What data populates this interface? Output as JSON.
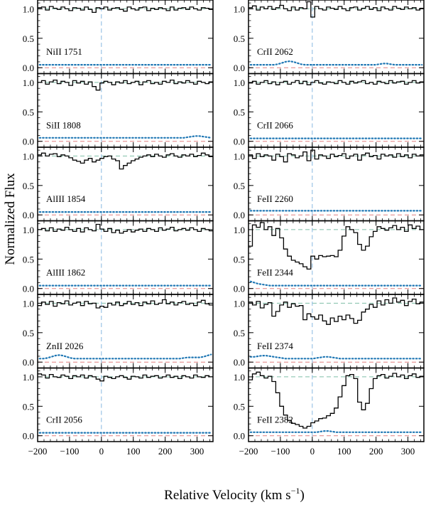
{
  "figure": {
    "ylabel": "Normalized Flux",
    "xlabel_main": "Relative Velocity  (km s",
    "xlabel_exp": "−1",
    "xlabel_close": ")"
  },
  "chart_data": {
    "type": "line",
    "shared": {
      "xlim": [
        -200,
        350
      ],
      "ylim": [
        -0.1,
        1.15
      ],
      "xticks": [
        -200,
        -100,
        0,
        100,
        200,
        300
      ],
      "xtick_labels": [
        "−200",
        "−100",
        "0",
        "100",
        "200",
        "300"
      ],
      "yticks": [
        0.0,
        0.5,
        1.0
      ],
      "ytick_labels": [
        "0.0",
        "0.5",
        "1.0"
      ],
      "continuum_level": 1.0,
      "zero_level": 0.0,
      "velocity_zero": 0,
      "grid": false,
      "colors": {
        "flux": "#000000",
        "error": "#1f77b4",
        "continuum": "#7fbfa8",
        "zero_line": "#e08080",
        "velocity_marker": "#87b7e0"
      }
    },
    "panels": [
      {
        "label": "NiII 1751",
        "flux": [
          1.02,
          1.03,
          0.98,
          1.04,
          1.01,
          0.99,
          1.03,
          1.0,
          0.97,
          1.02,
          1.01,
          0.98,
          1.03,
          0.99,
          0.94,
          1.02,
          1.0,
          1.03,
          0.98,
          1.01,
          1.02,
          0.99,
          0.96,
          1.03,
          1.0,
          0.98,
          1.02,
          1.03,
          0.97,
          1.01,
          0.99,
          1.02,
          1.0,
          0.97,
          1.03,
          0.98,
          1.01,
          1.02,
          0.99,
          1.03,
          1.0,
          0.98,
          1.02,
          1.01,
          0.99
        ],
        "error": [
          0.05,
          0.05,
          0.05,
          0.05,
          0.05,
          0.05,
          0.05,
          0.05,
          0.05,
          0.05,
          0.05,
          0.05,
          0.05,
          0.05,
          0.05,
          0.05,
          0.05,
          0.05,
          0.05,
          0.05,
          0.05,
          0.05,
          0.05,
          0.05,
          0.05,
          0.05,
          0.05,
          0.05,
          0.05,
          0.05,
          0.05,
          0.05,
          0.05,
          0.05,
          0.05,
          0.05,
          0.05,
          0.05,
          0.05,
          0.05,
          0.05,
          0.05,
          0.05,
          0.05,
          0.05
        ]
      },
      {
        "label": "CrII 2062",
        "flux": [
          1.02,
          1.05,
          0.98,
          1.03,
          1.0,
          1.04,
          0.99,
          1.02,
          1.06,
          1.0,
          0.97,
          1.03,
          0.98,
          1.02,
          1.0,
          1.12,
          0.86,
          1.04,
          1.0,
          0.98,
          1.03,
          1.01,
          0.99,
          1.04,
          1.0,
          0.97,
          1.02,
          1.03,
          0.98,
          1.01,
          1.04,
          0.99,
          1.02,
          0.97,
          1.03,
          1.0,
          0.98,
          1.04,
          1.01,
          0.99,
          1.03,
          1.0,
          1.02,
          0.98,
          1.01
        ],
        "error": [
          0.05,
          0.05,
          0.05,
          0.05,
          0.05,
          0.05,
          0.05,
          0.06,
          0.08,
          0.1,
          0.11,
          0.1,
          0.08,
          0.06,
          0.05,
          0.05,
          0.05,
          0.05,
          0.05,
          0.05,
          0.05,
          0.05,
          0.05,
          0.05,
          0.05,
          0.05,
          0.05,
          0.05,
          0.05,
          0.05,
          0.05,
          0.05,
          0.05,
          0.06,
          0.07,
          0.07,
          0.06,
          0.05,
          0.05,
          0.05,
          0.05,
          0.05,
          0.05,
          0.05,
          0.05
        ]
      },
      {
        "label": "SiII 1808",
        "flux": [
          1.0,
          1.03,
          0.97,
          1.01,
          1.04,
          0.98,
          1.02,
          1.0,
          0.95,
          1.03,
          0.99,
          1.02,
          0.97,
          1.01,
          0.93,
          0.87,
          0.99,
          1.02,
          1.0,
          0.96,
          1.01,
          0.99,
          1.03,
          0.98,
          1.0,
          1.02,
          0.96,
          1.01,
          1.03,
          0.98,
          1.0,
          0.97,
          1.02,
          1.0,
          1.04,
          0.98,
          1.01,
          0.99,
          1.03,
          1.0,
          0.97,
          1.02,
          1.0,
          0.98,
          1.01
        ],
        "error": [
          0.06,
          0.06,
          0.06,
          0.06,
          0.06,
          0.06,
          0.06,
          0.06,
          0.06,
          0.06,
          0.06,
          0.06,
          0.06,
          0.06,
          0.06,
          0.06,
          0.06,
          0.06,
          0.06,
          0.06,
          0.06,
          0.06,
          0.06,
          0.06,
          0.06,
          0.06,
          0.06,
          0.06,
          0.06,
          0.06,
          0.06,
          0.06,
          0.06,
          0.06,
          0.06,
          0.06,
          0.06,
          0.06,
          0.07,
          0.08,
          0.09,
          0.09,
          0.08,
          0.07,
          0.06
        ]
      },
      {
        "label": "CrII 2066",
        "flux": [
          0.99,
          1.02,
          0.97,
          1.0,
          1.03,
          0.98,
          1.01,
          0.96,
          1.0,
          1.02,
          0.97,
          1.0,
          1.03,
          0.98,
          1.02,
          0.96,
          1.0,
          1.03,
          0.99,
          0.97,
          1.01,
          1.0,
          0.98,
          1.03,
          1.0,
          0.97,
          1.02,
          0.99,
          1.01,
          1.03,
          0.98,
          1.0,
          0.97,
          1.02,
          1.0,
          0.98,
          1.03,
          0.99,
          1.01,
          1.02,
          0.97,
          1.0,
          1.03,
          0.99,
          1.01
        ],
        "error": [
          0.05,
          0.05,
          0.05,
          0.05,
          0.05,
          0.05,
          0.05,
          0.05,
          0.05,
          0.05,
          0.05,
          0.05,
          0.05,
          0.05,
          0.05,
          0.05,
          0.05,
          0.05,
          0.05,
          0.05,
          0.05,
          0.05,
          0.05,
          0.05,
          0.05,
          0.05,
          0.05,
          0.05,
          0.05,
          0.05,
          0.05,
          0.05,
          0.05,
          0.05,
          0.05,
          0.05,
          0.05,
          0.05,
          0.05,
          0.05,
          0.05,
          0.05,
          0.05,
          0.05,
          0.05
        ]
      },
      {
        "label": "AlIII 1854",
        "flux": [
          1.02,
          1.05,
          1.0,
          1.03,
          1.04,
          0.99,
          1.02,
          1.0,
          0.97,
          0.93,
          0.91,
          0.88,
          0.93,
          0.96,
          0.9,
          0.93,
          0.96,
          0.99,
          1.0,
          0.95,
          0.92,
          0.78,
          0.84,
          0.88,
          0.92,
          0.95,
          0.98,
          1.0,
          1.02,
          0.99,
          1.03,
          1.0,
          0.98,
          1.02,
          1.04,
          1.0,
          0.98,
          1.02,
          1.0,
          1.03,
          0.99,
          1.01,
          1.05,
          1.02,
          0.99
        ],
        "error": [
          0.05,
          0.05,
          0.05,
          0.05,
          0.05,
          0.05,
          0.05,
          0.05,
          0.05,
          0.05,
          0.05,
          0.05,
          0.05,
          0.05,
          0.05,
          0.05,
          0.05,
          0.05,
          0.05,
          0.05,
          0.05,
          0.05,
          0.05,
          0.05,
          0.05,
          0.05,
          0.05,
          0.05,
          0.05,
          0.05,
          0.05,
          0.05,
          0.05,
          0.05,
          0.05,
          0.05,
          0.05,
          0.05,
          0.05,
          0.05,
          0.05,
          0.05,
          0.05,
          0.05,
          0.05
        ]
      },
      {
        "label": "FeII 2260",
        "flux": [
          1.02,
          0.96,
          1.04,
          0.99,
          1.02,
          1.0,
          0.93,
          1.03,
          0.99,
          0.9,
          1.04,
          1.02,
          0.97,
          1.0,
          1.07,
          0.92,
          1.1,
          0.95,
          1.02,
          1.0,
          0.96,
          1.03,
          0.99,
          1.01,
          1.04,
          0.96,
          1.0,
          1.03,
          0.93,
          1.02,
          1.05,
          0.99,
          1.01,
          0.95,
          1.03,
          1.0,
          1.02,
          0.98,
          1.04,
          0.99,
          1.02,
          0.97,
          1.03,
          1.0,
          1.02
        ],
        "error": [
          0.07,
          0.07,
          0.07,
          0.07,
          0.07,
          0.07,
          0.07,
          0.07,
          0.07,
          0.07,
          0.07,
          0.07,
          0.07,
          0.07,
          0.07,
          0.07,
          0.07,
          0.07,
          0.07,
          0.07,
          0.07,
          0.07,
          0.07,
          0.07,
          0.07,
          0.07,
          0.07,
          0.07,
          0.07,
          0.07,
          0.07,
          0.07,
          0.07,
          0.07,
          0.07,
          0.07,
          0.07,
          0.07,
          0.07,
          0.07,
          0.07,
          0.07,
          0.07,
          0.07,
          0.07
        ]
      },
      {
        "label": "AlIII 1862",
        "flux": [
          1.0,
          1.02,
          0.98,
          1.03,
          0.97,
          1.01,
          0.99,
          1.04,
          1.0,
          0.97,
          1.02,
          0.96,
          1.03,
          1.0,
          0.98,
          1.09,
          1.01,
          0.97,
          1.02,
          0.95,
          0.99,
          0.94,
          0.97,
          1.0,
          0.96,
          0.99,
          1.01,
          0.97,
          1.02,
          1.0,
          0.97,
          1.03,
          0.99,
          1.01,
          1.04,
          0.98,
          1.0,
          1.02,
          0.99,
          1.03,
          1.0,
          0.97,
          1.02,
          1.0,
          0.98
        ],
        "error": [
          0.05,
          0.05,
          0.05,
          0.05,
          0.05,
          0.05,
          0.05,
          0.05,
          0.05,
          0.05,
          0.05,
          0.05,
          0.05,
          0.05,
          0.05,
          0.05,
          0.05,
          0.05,
          0.05,
          0.05,
          0.05,
          0.05,
          0.05,
          0.05,
          0.05,
          0.05,
          0.05,
          0.05,
          0.05,
          0.05,
          0.05,
          0.05,
          0.05,
          0.05,
          0.05,
          0.05,
          0.05,
          0.05,
          0.05,
          0.05,
          0.05,
          0.05,
          0.05,
          0.05,
          0.05
        ]
      },
      {
        "label": "FeII 2344",
        "flux": [
          0.72,
          1.08,
          1.04,
          1.12,
          1.0,
          1.05,
          0.9,
          1.02,
          0.86,
          0.67,
          0.55,
          0.48,
          0.45,
          0.42,
          0.37,
          0.33,
          0.55,
          0.5,
          0.56,
          0.54,
          0.55,
          0.56,
          0.54,
          0.65,
          0.89,
          1.05,
          1.0,
          0.95,
          0.75,
          0.65,
          0.72,
          0.88,
          0.97,
          1.05,
          1.02,
          0.99,
          1.03,
          1.07,
          1.0,
          1.04,
          0.97,
          1.08,
          1.02,
          1.06,
          1.0
        ],
        "error": [
          0.12,
          0.1,
          0.08,
          0.07,
          0.06,
          0.05,
          0.05,
          0.05,
          0.05,
          0.05,
          0.05,
          0.05,
          0.05,
          0.05,
          0.05,
          0.05,
          0.05,
          0.05,
          0.05,
          0.05,
          0.05,
          0.05,
          0.05,
          0.05,
          0.05,
          0.05,
          0.05,
          0.05,
          0.05,
          0.05,
          0.05,
          0.05,
          0.05,
          0.05,
          0.05,
          0.05,
          0.05,
          0.05,
          0.05,
          0.05,
          0.05,
          0.05,
          0.05,
          0.05,
          0.05
        ]
      },
      {
        "label": "ZnII 2026",
        "flux": [
          0.96,
          1.02,
          0.98,
          1.03,
          0.95,
          1.01,
          0.99,
          1.04,
          0.97,
          1.0,
          1.02,
          0.96,
          1.03,
          0.99,
          1.0,
          0.92,
          0.95,
          0.93,
          1.0,
          0.97,
          1.02,
          0.96,
          0.99,
          1.03,
          0.98,
          1.01,
          0.96,
          1.02,
          0.99,
          1.04,
          0.98,
          1.0,
          1.06,
          0.99,
          1.02,
          0.97,
          1.01,
          1.03,
          0.98,
          1.0,
          0.96,
          1.02,
          1.05,
          0.99,
          0.97
        ],
        "error": [
          0.06,
          0.06,
          0.07,
          0.09,
          0.11,
          0.12,
          0.11,
          0.09,
          0.07,
          0.06,
          0.06,
          0.06,
          0.06,
          0.06,
          0.06,
          0.06,
          0.06,
          0.06,
          0.06,
          0.06,
          0.06,
          0.06,
          0.06,
          0.06,
          0.06,
          0.06,
          0.06,
          0.06,
          0.06,
          0.06,
          0.06,
          0.06,
          0.06,
          0.06,
          0.06,
          0.06,
          0.06,
          0.07,
          0.08,
          0.08,
          0.08,
          0.08,
          0.09,
          0.11,
          0.13
        ]
      },
      {
        "label": "FeII 2374",
        "flux": [
          1.02,
          0.97,
          1.03,
          0.92,
          0.98,
          1.01,
          0.78,
          0.86,
          0.97,
          1.02,
          0.93,
          0.99,
          0.95,
          0.96,
          0.72,
          0.82,
          0.77,
          0.73,
          0.8,
          0.7,
          0.64,
          0.75,
          0.69,
          0.78,
          0.72,
          0.8,
          0.74,
          0.66,
          0.71,
          0.85,
          0.9,
          0.98,
          0.93,
          1.04,
          0.97,
          1.06,
          1.0,
          1.09,
          1.02,
          1.05,
          0.96,
          1.03,
          1.07,
          0.99,
          1.02
        ],
        "error": [
          0.09,
          0.09,
          0.1,
          0.11,
          0.11,
          0.1,
          0.09,
          0.08,
          0.07,
          0.06,
          0.06,
          0.06,
          0.06,
          0.06,
          0.06,
          0.06,
          0.06,
          0.07,
          0.08,
          0.09,
          0.09,
          0.08,
          0.07,
          0.06,
          0.06,
          0.06,
          0.06,
          0.06,
          0.06,
          0.06,
          0.06,
          0.06,
          0.06,
          0.06,
          0.06,
          0.06,
          0.06,
          0.06,
          0.06,
          0.06,
          0.06,
          0.06,
          0.06,
          0.06,
          0.06
        ]
      },
      {
        "label": "CrII 2056",
        "flux": [
          1.05,
          1.03,
          0.98,
          1.04,
          1.0,
          0.99,
          1.03,
          1.01,
          0.97,
          1.02,
          1.0,
          1.03,
          0.98,
          1.02,
          1.0,
          0.96,
          0.93,
          1.01,
          0.99,
          0.97,
          1.0,
          1.02,
          0.99,
          0.96,
          1.01,
          1.0,
          0.98,
          1.03,
          0.99,
          1.01,
          1.02,
          0.98,
          1.0,
          1.03,
          0.99,
          1.01,
          0.97,
          1.02,
          1.0,
          0.98,
          1.03,
          1.0,
          0.99,
          1.02,
          1.0
        ],
        "error": [
          0.05,
          0.05,
          0.05,
          0.05,
          0.05,
          0.05,
          0.05,
          0.05,
          0.05,
          0.05,
          0.05,
          0.05,
          0.05,
          0.05,
          0.05,
          0.05,
          0.05,
          0.05,
          0.05,
          0.05,
          0.05,
          0.05,
          0.05,
          0.05,
          0.05,
          0.05,
          0.05,
          0.05,
          0.05,
          0.05,
          0.05,
          0.05,
          0.05,
          0.05,
          0.05,
          0.05,
          0.05,
          0.05,
          0.05,
          0.05,
          0.05,
          0.05,
          0.05,
          0.05,
          0.05
        ]
      },
      {
        "label": "FeII 2382",
        "flux": [
          0.95,
          1.05,
          1.08,
          1.02,
          0.98,
          1.01,
          0.92,
          0.73,
          0.5,
          0.35,
          0.26,
          0.21,
          0.19,
          0.16,
          0.13,
          0.16,
          0.22,
          0.25,
          0.29,
          0.3,
          0.34,
          0.38,
          0.47,
          0.66,
          0.85,
          1.02,
          1.04,
          0.97,
          0.57,
          0.44,
          0.55,
          0.8,
          0.97,
          1.02,
          1.04,
          0.98,
          1.01,
          1.06,
          1.0,
          1.03,
          0.97,
          1.02,
          1.05,
          0.99,
          1.01
        ],
        "error": [
          0.06,
          0.06,
          0.06,
          0.06,
          0.06,
          0.06,
          0.06,
          0.06,
          0.06,
          0.06,
          0.06,
          0.06,
          0.06,
          0.06,
          0.06,
          0.06,
          0.06,
          0.06,
          0.07,
          0.08,
          0.08,
          0.07,
          0.06,
          0.06,
          0.06,
          0.06,
          0.06,
          0.06,
          0.06,
          0.06,
          0.06,
          0.06,
          0.06,
          0.06,
          0.06,
          0.06,
          0.06,
          0.06,
          0.06,
          0.06,
          0.06,
          0.06,
          0.06,
          0.06,
          0.06
        ]
      }
    ]
  }
}
